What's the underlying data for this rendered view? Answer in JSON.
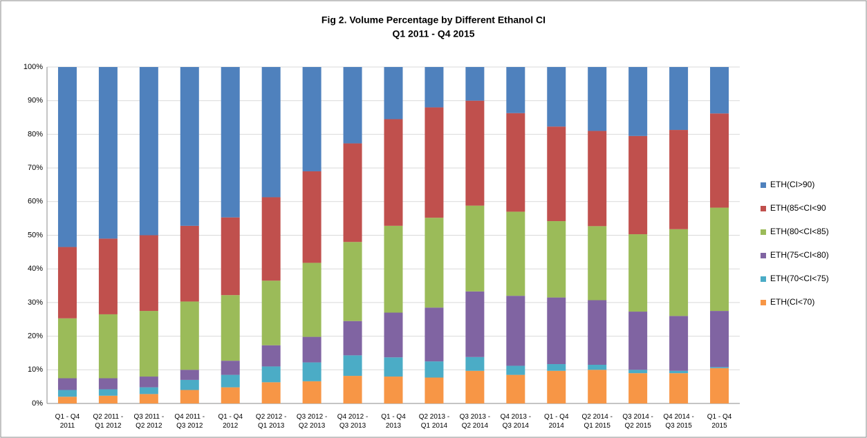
{
  "chart_data": {
    "type": "stacked_bar",
    "title": "Fig 2. Volume Percentage by Different Ethanol CI",
    "subtitle": "Q1 2011 - Q4 2015",
    "categories": [
      "Q1 - Q4 2011",
      "Q2 2011 - Q1 2012",
      "Q3 2011 - Q2 2012",
      "Q4 2011 - Q3 2012",
      "Q1 - Q4 2012",
      "Q2 2012 - Q1 2013",
      "Q3 2012 - Q2 2013",
      "Q4 2012 - Q3 2013",
      "Q1 - Q4 2013",
      "Q2 2013 - Q1 2014",
      "Q3 2013 - Q2 2014",
      "Q4 2013 - Q3 2014",
      "Q1 - Q4 2014",
      "Q2 2014 - Q1 2015",
      "Q3 2014 - Q2 2015",
      "Q4 2014 - Q3 2015",
      "Q1 - Q4 2015"
    ],
    "series": [
      {
        "name": "ETH(CI<70)",
        "color": "#f79646",
        "values": [
          2,
          2.3,
          2.8,
          4,
          4.8,
          6.3,
          6.6,
          8.2,
          8,
          7.7,
          9.7,
          8.5,
          9.7,
          10,
          9,
          9,
          10.5
        ]
      },
      {
        "name": "ETH(70<CI<75)",
        "color": "#4bacc6",
        "values": [
          2,
          1.9,
          2,
          3,
          3.7,
          4.7,
          5.6,
          6.1,
          5.7,
          4.8,
          4.1,
          2.7,
          2,
          1.5,
          1,
          0.7,
          0.3
        ]
      },
      {
        "name": "ETH(75<CI<80)",
        "color": "#8064a2",
        "values": [
          3.5,
          3.3,
          3.2,
          3,
          4.2,
          6.3,
          7.6,
          10.2,
          13.3,
          16,
          19.5,
          20.8,
          19.8,
          19.2,
          17.3,
          16.3,
          16.7
        ]
      },
      {
        "name": "ETH(80<CI<85)",
        "color": "#9bbb59",
        "values": [
          17.8,
          19,
          19.5,
          20.3,
          19.5,
          19.2,
          22,
          23.5,
          25.8,
          26.7,
          25.5,
          25,
          22.7,
          22,
          23,
          25.8,
          30.7
        ]
      },
      {
        "name": "ETH(85<CI<90",
        "color": "#c0504d",
        "values": [
          21.2,
          22.5,
          22.5,
          22.5,
          23.1,
          24.8,
          27.2,
          29.3,
          31.7,
          32.8,
          31.2,
          29.3,
          28.1,
          28.3,
          29.2,
          29.5,
          28
        ]
      },
      {
        "name": "ETH(CI>90)",
        "color": "#4f81bd",
        "values": [
          53.5,
          51,
          50,
          47.2,
          44.7,
          38.7,
          31,
          22.7,
          15.5,
          12,
          10,
          13.7,
          17.7,
          19,
          20.5,
          18.7,
          13.8
        ]
      }
    ],
    "ylim": [
      0,
      100
    ],
    "yticks": [
      {
        "value": 0,
        "label": "0%"
      },
      {
        "value": 10,
        "label": "10%"
      },
      {
        "value": 20,
        "label": "20%"
      },
      {
        "value": 30,
        "label": "30%"
      },
      {
        "value": 40,
        "label": "40%"
      },
      {
        "value": 50,
        "label": "50%"
      },
      {
        "value": 60,
        "label": "60%"
      },
      {
        "value": 70,
        "label": "70%"
      },
      {
        "value": 80,
        "label": "80%"
      },
      {
        "value": 90,
        "label": "90%"
      },
      {
        "value": 100,
        "label": "100%"
      }
    ],
    "grid": true,
    "legend": "right"
  }
}
